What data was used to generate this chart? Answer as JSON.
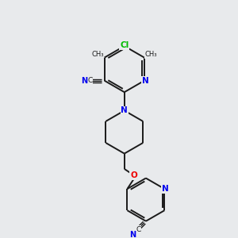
{
  "background_color": "#e8eaec",
  "bond_color": "#1a1a1a",
  "atom_colors": {
    "N": "#0000ee",
    "O": "#ee0000",
    "Cl": "#00bb00",
    "C": "#1a1a1a"
  },
  "figsize": [
    3.0,
    3.0
  ],
  "dpi": 100,
  "bond_lw": 1.4,
  "double_sep": 2.8,
  "font_size_label": 7.5,
  "font_size_small": 6.5
}
